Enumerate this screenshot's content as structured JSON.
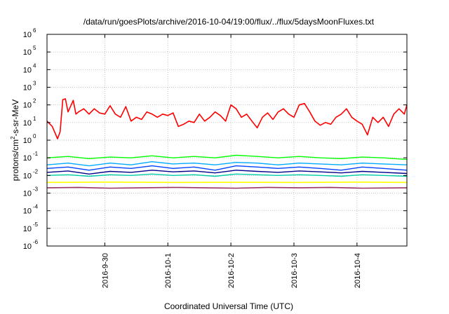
{
  "chart_data": {
    "type": "line",
    "title": "/data/run/goesPlots/archive/2016-10-04/19:00/flux/../flux/5daysMoonFluxes.txt",
    "xlabel": "Coordinated Universal Time (UTC)",
    "ylabel": "protons/cm2-s-sr-MeV",
    "ylabel_parts": {
      "pre": "protons/cm",
      "sup": "2",
      "post": "-s-sr-MeV"
    },
    "y_scale": "log",
    "ylim": [
      1e-06,
      1000000.0
    ],
    "yticks": [
      {
        "mant": "10",
        "exp": "-6",
        "value": 1e-06
      },
      {
        "mant": "10",
        "exp": "-5",
        "value": 1e-05
      },
      {
        "mant": "10",
        "exp": "-4",
        "value": 0.0001
      },
      {
        "mant": "10",
        "exp": "-3",
        "value": 0.001
      },
      {
        "mant": "10",
        "exp": "-2",
        "value": 0.01
      },
      {
        "mant": "10",
        "exp": "-1",
        "value": 0.1
      },
      {
        "mant": "10",
        "exp": "0",
        "value": 1
      },
      {
        "mant": "10",
        "exp": "1",
        "value": 10
      },
      {
        "mant": "10",
        "exp": "2",
        "value": 100
      },
      {
        "mant": "10",
        "exp": "3",
        "value": 1000
      },
      {
        "mant": "10",
        "exp": "4",
        "value": 10000
      },
      {
        "mant": "10",
        "exp": "5",
        "value": 100000
      },
      {
        "mant": "10",
        "exp": "6",
        "value": 1000000
      }
    ],
    "xlim": [
      "2016-09-29T02:00",
      "2016-10-04T19:00"
    ],
    "xticks": [
      {
        "label": "2016-9-30",
        "value": "2016-09-30T00:00"
      },
      {
        "label": "2016-10-1",
        "value": "2016-10-01T00:00"
      },
      {
        "label": "2016-10-2",
        "value": "2016-10-02T00:00"
      },
      {
        "label": "2016-10-3",
        "value": "2016-10-03T00:00"
      },
      {
        "label": "2016-10-4",
        "value": "2016-10-04T00:00"
      }
    ],
    "grid": true,
    "series": [
      {
        "color": "#ff0000",
        "width": 1.6,
        "x": [
          "2016-09-29T02:00",
          "2016-09-29T04:00",
          "2016-09-29T06:00",
          "2016-09-29T07:00",
          "2016-09-29T08:00",
          "2016-09-29T09:00",
          "2016-09-29T10:00",
          "2016-09-29T12:00",
          "2016-09-29T13:00",
          "2016-09-29T14:00",
          "2016-09-29T16:00",
          "2016-09-29T18:00",
          "2016-09-29T20:00",
          "2016-09-29T22:00",
          "2016-09-30T00:00",
          "2016-09-30T02:00",
          "2016-09-30T04:00",
          "2016-09-30T06:00",
          "2016-09-30T08:00",
          "2016-09-30T10:00",
          "2016-09-30T12:00",
          "2016-09-30T14:00",
          "2016-09-30T16:00",
          "2016-09-30T18:00",
          "2016-09-30T20:00",
          "2016-09-30T22:00",
          "2016-10-01T00:00",
          "2016-10-01T02:00",
          "2016-10-01T04:00",
          "2016-10-01T06:00",
          "2016-10-01T08:00",
          "2016-10-01T10:00",
          "2016-10-01T12:00",
          "2016-10-01T14:00",
          "2016-10-01T16:00",
          "2016-10-01T18:00",
          "2016-10-01T20:00",
          "2016-10-01T22:00",
          "2016-10-02T00:00",
          "2016-10-02T02:00",
          "2016-10-02T04:00",
          "2016-10-02T06:00",
          "2016-10-02T08:00",
          "2016-10-02T10:00",
          "2016-10-02T12:00",
          "2016-10-02T14:00",
          "2016-10-02T16:00",
          "2016-10-02T18:00",
          "2016-10-02T20:00",
          "2016-10-02T22:00",
          "2016-10-03T00:00",
          "2016-10-03T02:00",
          "2016-10-03T04:00",
          "2016-10-03T06:00",
          "2016-10-03T08:00",
          "2016-10-03T10:00",
          "2016-10-03T12:00",
          "2016-10-03T14:00",
          "2016-10-03T16:00",
          "2016-10-03T18:00",
          "2016-10-03T20:00",
          "2016-10-03T22:00",
          "2016-10-04T00:00",
          "2016-10-04T02:00",
          "2016-10-04T04:00",
          "2016-10-04T06:00",
          "2016-10-04T08:00",
          "2016-10-04T10:00",
          "2016-10-04T12:00",
          "2016-10-04T14:00",
          "2016-10-04T16:00",
          "2016-10-04T18:00",
          "2016-10-04T19:00"
        ],
        "y": [
          12,
          6,
          1.2,
          3,
          200,
          220,
          40,
          180,
          30,
          40,
          60,
          30,
          60,
          35,
          30,
          90,
          30,
          20,
          80,
          12,
          20,
          15,
          40,
          30,
          20,
          30,
          25,
          35,
          6,
          8,
          12,
          10,
          30,
          12,
          20,
          40,
          25,
          12,
          100,
          60,
          20,
          30,
          12,
          5,
          20,
          35,
          15,
          40,
          60,
          30,
          20,
          100,
          120,
          40,
          12,
          7,
          10,
          8,
          20,
          30,
          60,
          20,
          12,
          8,
          2,
          20,
          10,
          20,
          6,
          30,
          60,
          30,
          100
        ]
      },
      {
        "color": "#00ff00",
        "width": 1.4,
        "x": [
          "2016-09-29T02:00",
          "2016-09-29T10:00",
          "2016-09-29T18:00",
          "2016-09-30T02:00",
          "2016-09-30T10:00",
          "2016-09-30T18:00",
          "2016-10-01T02:00",
          "2016-10-01T10:00",
          "2016-10-01T18:00",
          "2016-10-02T02:00",
          "2016-10-02T10:00",
          "2016-10-02T18:00",
          "2016-10-03T02:00",
          "2016-10-03T10:00",
          "2016-10-03T18:00",
          "2016-10-04T02:00",
          "2016-10-04T10:00",
          "2016-10-04T19:00"
        ],
        "y": [
          0.1,
          0.12,
          0.09,
          0.11,
          0.1,
          0.13,
          0.1,
          0.12,
          0.1,
          0.14,
          0.12,
          0.1,
          0.12,
          0.1,
          0.09,
          0.11,
          0.1,
          0.08
        ]
      },
      {
        "color": "#00aaff",
        "width": 1.4,
        "x": [
          "2016-09-29T02:00",
          "2016-09-29T10:00",
          "2016-09-29T18:00",
          "2016-09-30T02:00",
          "2016-09-30T10:00",
          "2016-09-30T18:00",
          "2016-10-01T02:00",
          "2016-10-01T10:00",
          "2016-10-01T18:00",
          "2016-10-02T02:00",
          "2016-10-02T10:00",
          "2016-10-02T18:00",
          "2016-10-03T02:00",
          "2016-10-03T10:00",
          "2016-10-03T18:00",
          "2016-10-04T02:00",
          "2016-10-04T10:00",
          "2016-10-04T19:00"
        ],
        "y": [
          0.04,
          0.05,
          0.035,
          0.05,
          0.04,
          0.06,
          0.045,
          0.05,
          0.04,
          0.055,
          0.05,
          0.04,
          0.05,
          0.045,
          0.04,
          0.05,
          0.045,
          0.04
        ]
      },
      {
        "color": "#0044ff",
        "width": 1.4,
        "x": [
          "2016-09-29T02:00",
          "2016-09-29T10:00",
          "2016-09-29T18:00",
          "2016-09-30T02:00",
          "2016-09-30T10:00",
          "2016-09-30T18:00",
          "2016-10-01T02:00",
          "2016-10-01T10:00",
          "2016-10-01T18:00",
          "2016-10-02T02:00",
          "2016-10-02T10:00",
          "2016-10-02T18:00",
          "2016-10-03T02:00",
          "2016-10-03T10:00",
          "2016-10-03T18:00",
          "2016-10-04T02:00",
          "2016-10-04T10:00",
          "2016-10-04T19:00"
        ],
        "y": [
          0.025,
          0.03,
          0.02,
          0.03,
          0.025,
          0.035,
          0.025,
          0.03,
          0.02,
          0.035,
          0.03,
          0.025,
          0.03,
          0.025,
          0.02,
          0.03,
          0.025,
          0.02
        ]
      },
      {
        "color": "#00008b",
        "width": 1.4,
        "x": [
          "2016-09-29T02:00",
          "2016-09-29T10:00",
          "2016-09-29T18:00",
          "2016-09-30T02:00",
          "2016-09-30T10:00",
          "2016-09-30T18:00",
          "2016-10-01T02:00",
          "2016-10-01T10:00",
          "2016-10-01T18:00",
          "2016-10-02T02:00",
          "2016-10-02T10:00",
          "2016-10-02T18:00",
          "2016-10-03T02:00",
          "2016-10-03T10:00",
          "2016-10-03T18:00",
          "2016-10-04T02:00",
          "2016-10-04T10:00",
          "2016-10-04T19:00"
        ],
        "y": [
          0.015,
          0.018,
          0.012,
          0.017,
          0.015,
          0.02,
          0.016,
          0.018,
          0.014,
          0.02,
          0.017,
          0.015,
          0.018,
          0.016,
          0.014,
          0.017,
          0.015,
          0.013
        ]
      },
      {
        "color": "#00ccaa",
        "width": 1.4,
        "x": [
          "2016-09-29T02:00",
          "2016-09-29T10:00",
          "2016-09-29T18:00",
          "2016-09-30T02:00",
          "2016-09-30T10:00",
          "2016-09-30T18:00",
          "2016-10-01T02:00",
          "2016-10-01T10:00",
          "2016-10-01T18:00",
          "2016-10-02T02:00",
          "2016-10-02T10:00",
          "2016-10-02T18:00",
          "2016-10-03T02:00",
          "2016-10-03T10:00",
          "2016-10-03T18:00",
          "2016-10-04T02:00",
          "2016-10-04T10:00",
          "2016-10-04T19:00"
        ],
        "y": [
          0.01,
          0.011,
          0.009,
          0.011,
          0.01,
          0.012,
          0.01,
          0.011,
          0.009,
          0.012,
          0.011,
          0.01,
          0.011,
          0.01,
          0.009,
          0.011,
          0.01,
          0.009
        ]
      },
      {
        "color": "#ffff00",
        "width": 1.6,
        "x": [
          "2016-09-29T02:00",
          "2016-09-30T02:00",
          "2016-10-01T02:00",
          "2016-10-02T02:00",
          "2016-10-03T02:00",
          "2016-10-04T02:00",
          "2016-10-04T19:00"
        ],
        "y": [
          0.004,
          0.0042,
          0.004,
          0.0041,
          0.004,
          0.0042,
          0.004
        ]
      },
      {
        "color": "#993366",
        "width": 1.6,
        "x": [
          "2016-09-29T02:00",
          "2016-09-29T14:00",
          "2016-09-30T02:00",
          "2016-09-30T14:00",
          "2016-10-01T02:00",
          "2016-10-01T14:00",
          "2016-10-02T02:00",
          "2016-10-02T14:00",
          "2016-10-03T02:00",
          "2016-10-03T14:00",
          "2016-10-04T02:00",
          "2016-10-04T19:00"
        ],
        "y": [
          0.002,
          0.0021,
          0.0019,
          0.002,
          0.0021,
          0.002,
          0.0019,
          0.0021,
          0.002,
          0.0021,
          0.0019,
          0.002
        ]
      }
    ]
  }
}
